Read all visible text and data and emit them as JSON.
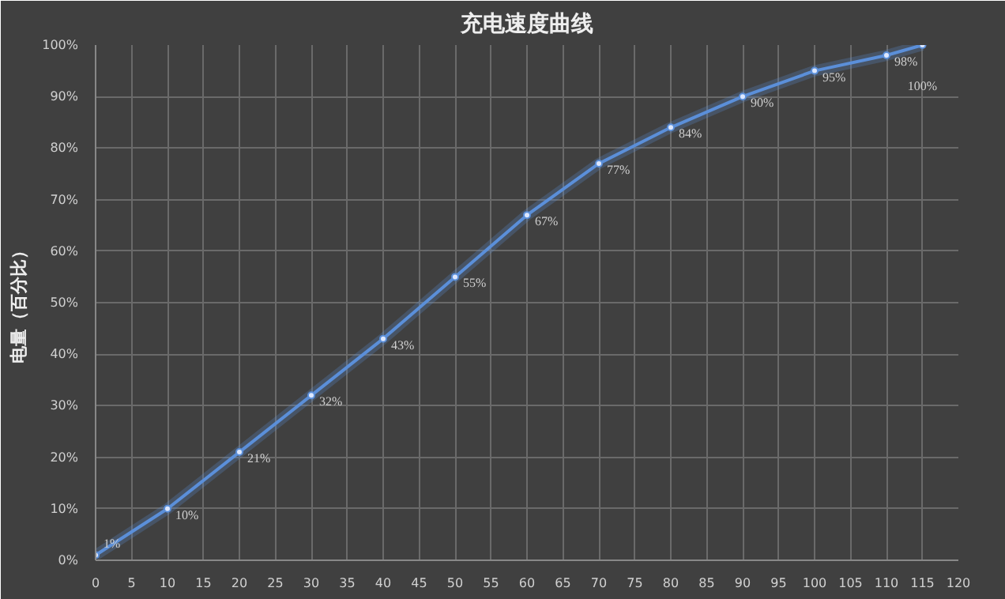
{
  "chart_data": {
    "type": "line",
    "title": "充电速度曲线",
    "ylabel": "电量（百分比）",
    "x": [
      0,
      10,
      20,
      30,
      40,
      50,
      60,
      70,
      80,
      90,
      100,
      110,
      115
    ],
    "series": [
      {
        "color": "#5b8fd9",
        "values": [
          1,
          10,
          21,
          32,
          43,
          55,
          67,
          77,
          84,
          90,
          95,
          98,
          100
        ],
        "value_labels": [
          "1%",
          "10%",
          "21%",
          "32%",
          "43%",
          "55%",
          "67%",
          "77%",
          "84%",
          "90%",
          "95%",
          "98%",
          "100%"
        ]
      }
    ],
    "xlim": [
      0,
      120
    ],
    "xticks": [
      0,
      5,
      10,
      15,
      20,
      25,
      30,
      35,
      40,
      45,
      50,
      55,
      60,
      65,
      70,
      75,
      80,
      85,
      90,
      95,
      100,
      105,
      110,
      115,
      120
    ],
    "ylim": [
      0,
      100
    ],
    "yticks": [
      {
        "value": 0,
        "label": "0%"
      },
      {
        "value": 10,
        "label": "10%"
      },
      {
        "value": 20,
        "label": "20%"
      },
      {
        "value": 30,
        "label": "30%"
      },
      {
        "value": 40,
        "label": "40%"
      },
      {
        "value": 50,
        "label": "50%"
      },
      {
        "value": 60,
        "label": "60%"
      },
      {
        "value": 70,
        "label": "70%"
      },
      {
        "value": 80,
        "label": "80%"
      },
      {
        "value": 90,
        "label": "90%"
      },
      {
        "value": 100,
        "label": "100%"
      }
    ],
    "grid": true,
    "marker": "circle",
    "line_style": "solid"
  }
}
